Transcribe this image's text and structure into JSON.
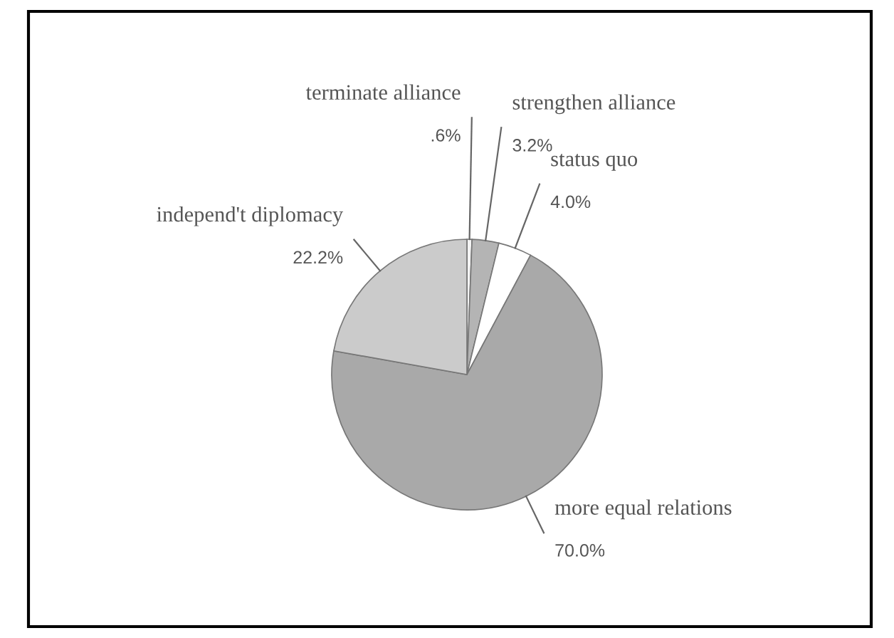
{
  "chart_data": {
    "type": "pie",
    "categories": [
      "terminate alliance",
      "strengthen alliance",
      "status quo",
      "more equal relations",
      "independ't diplomacy"
    ],
    "values": [
      0.6,
      3.2,
      4.0,
      70.0,
      22.2
    ],
    "value_labels": [
      ".6%",
      "3.2%",
      "4.0%",
      "70.0%",
      "22.2%"
    ],
    "colors": [
      "#f4f4f4",
      "#b4b4b4",
      "#ffffff",
      "#a9a9a9",
      "#cbcbcb"
    ]
  }
}
